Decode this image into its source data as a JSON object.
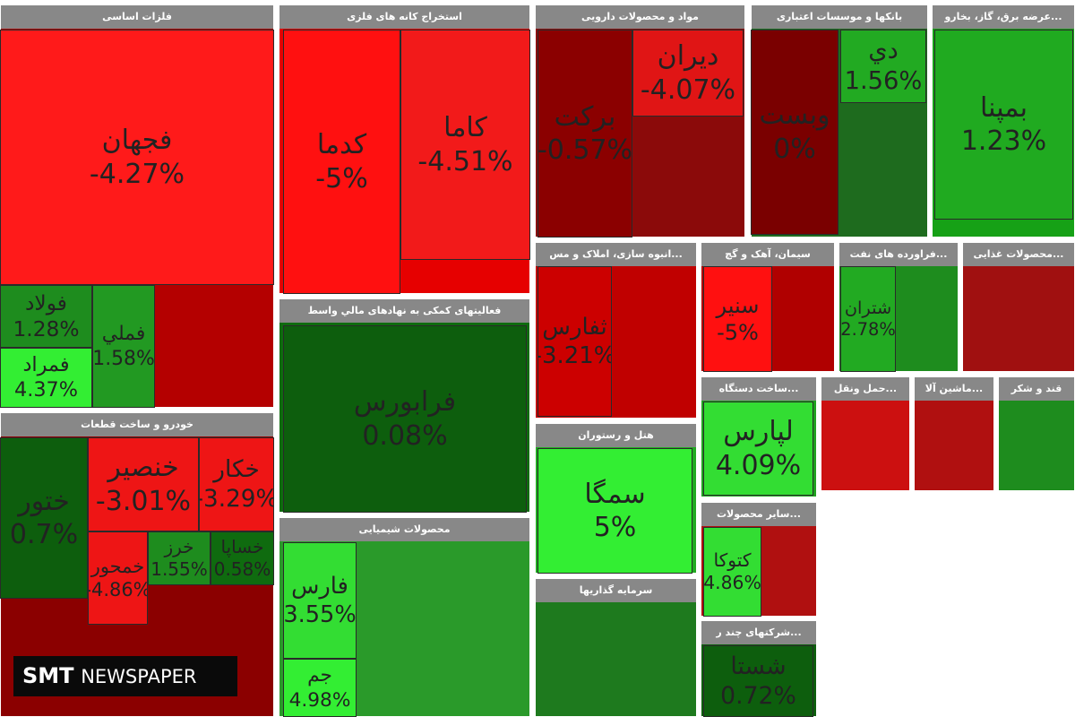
{
  "sectors": [
    {
      "title": "فلزات اساسی",
      "tiles": [
        {
          "label": "فجهان",
          "change": "-4.27%",
          "color": "#ff1a1a"
        },
        {
          "label": "فولاد",
          "change": "1.28%",
          "color": "#1e8c1e"
        },
        {
          "label": "فمراد",
          "change": "4.37%",
          "color": "#33ee33"
        },
        {
          "label": "فملي",
          "change": "1.58%",
          "color": "#229922"
        }
      ]
    },
    {
      "title": "استخراج کانه های فلزی",
      "tiles": [
        {
          "label": "كدما",
          "change": "-5%",
          "color": "#ff1010"
        },
        {
          "label": "كاما",
          "change": "-4.51%",
          "color": "#f21a1a"
        }
      ]
    },
    {
      "title": "فعالیتهای کمکی به نهادهای مالي واسط",
      "tiles": [
        {
          "label": "فرابورس",
          "change": "0.08%",
          "color": "#0d5e0d"
        }
      ]
    },
    {
      "title": "خودرو و ساخت قطعات",
      "tiles": [
        {
          "label": "ختور",
          "change": "0.7%",
          "color": "#0d5e0d"
        },
        {
          "label": "خنصير",
          "change": "-3.01%",
          "color": "#ee1515"
        },
        {
          "label": "خكار",
          "change": "-3.29%",
          "color": "#ee1515"
        },
        {
          "label": "خمحور",
          "change": "-4.86%",
          "color": "#ee1515"
        },
        {
          "label": "خرز",
          "change": "1.55%",
          "color": "#1e8c1e"
        },
        {
          "label": "خساپا",
          "change": "0.58%",
          "color": "#0f6b0f"
        }
      ]
    },
    {
      "title": "محصولات شیمیایی",
      "tiles": [
        {
          "label": "فارس",
          "change": "3.55%",
          "color": "#33dd33"
        },
        {
          "label": "جم",
          "change": "4.98%",
          "color": "#33ee33"
        }
      ]
    },
    {
      "title": "مواد و محصولات دارویی",
      "tiles": [
        {
          "label": "بركت",
          "change": "-0.57%",
          "color": "#8b0000"
        },
        {
          "label": "ديران",
          "change": "-4.07%",
          "color": "#e01515"
        }
      ]
    },
    {
      "title": "بانکها و موسسات اعتباری",
      "tiles": [
        {
          "label": "وبست",
          "change": "0%",
          "color": "#7a0000"
        },
        {
          "label": "دي",
          "change": "1.56%",
          "color": "#22aa22"
        }
      ]
    },
    {
      "title": "...عرضه برق، گاز، بخارو",
      "tiles": [
        {
          "label": "بمپنا",
          "change": "1.23%",
          "color": "#20aa20"
        }
      ]
    },
    {
      "title": "...انبوه سازی، املاک و مس",
      "tiles": [
        {
          "label": "ثفارس",
          "change": "-3.21%",
          "color": "#cc0000"
        }
      ]
    },
    {
      "title": "سیمان، آهک و گچ",
      "tiles": [
        {
          "label": "سنير",
          "change": "-5%",
          "color": "#ff1010"
        }
      ]
    },
    {
      "title": "...فراورده های نفت",
      "tiles": [
        {
          "label": "شتران",
          "change": "2.78%",
          "color": "#22aa22"
        }
      ]
    },
    {
      "title": "...محصولات غذایی",
      "tiles": []
    },
    {
      "title": "هتل و رستوران",
      "tiles": [
        {
          "label": "سمگا",
          "change": "5%",
          "color": "#33ee33"
        }
      ]
    },
    {
      "title": "سرمایه گذاریها",
      "tiles": []
    },
    {
      "title": "...ساخت دستگاه",
      "tiles": [
        {
          "label": "لپارس",
          "change": "4.09%",
          "color": "#33dd33"
        }
      ]
    },
    {
      "title": "...سایر محصولات",
      "tiles": [
        {
          "label": "كتوكا",
          "change": "4.86%",
          "color": "#33dd33"
        }
      ]
    },
    {
      "title": "...شرکتهای چند ر",
      "tiles": [
        {
          "label": "شستا",
          "change": "0.72%",
          "color": "#0d5e0d"
        }
      ]
    },
    {
      "title": "...حمل ونقل",
      "tiles": []
    },
    {
      "title": "...ماشین آلا",
      "tiles": []
    },
    {
      "title": "قند و شکر",
      "tiles": []
    }
  ],
  "watermark": {
    "brand": "SMT",
    "name": "NEWSPAPER"
  }
}
